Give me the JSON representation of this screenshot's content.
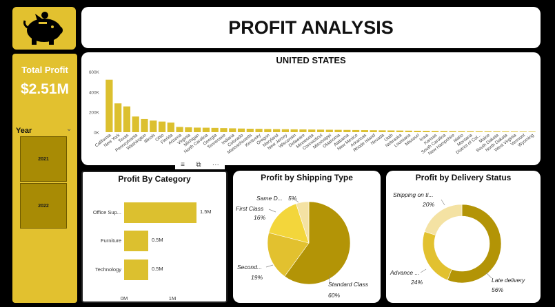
{
  "title": "PROFIT ANALYSIS",
  "logo": {
    "icon": "piggy-bank-icon"
  },
  "kpi": {
    "label": "Total Profit",
    "value": "$2.51M"
  },
  "year_slicer": {
    "label": "Year",
    "options": [
      "2021",
      "2022"
    ]
  },
  "toolbar": {
    "icons": [
      "filter-icon",
      "focus-mode-icon",
      "more-options-icon"
    ],
    "more_glyph": "···"
  },
  "colors": {
    "gold": "#e2c12f",
    "dark_gold": "#b39406",
    "bar": "#dcc02f"
  },
  "us_chart": {
    "title": "UNITED STATES",
    "chart_data": {
      "type": "bar",
      "ylim": [
        0,
        600000
      ],
      "yticks": [
        0,
        200000,
        400000,
        600000
      ],
      "ytick_labels": [
        "0K",
        "200K",
        "400K",
        "600K"
      ],
      "categories": [
        "California",
        "New York",
        "Texas",
        "Pennsylvania",
        "Washington",
        "Illinois",
        "Ohio",
        "Florida",
        "Arizona",
        "Virginia",
        "Michigan",
        "North Carolina",
        "Georgia",
        "Tennessee",
        "Indiana",
        "Colorado",
        "Massachusetts",
        "Kentucky",
        "Oregon",
        "Maryland",
        "New Jersey",
        "Wisconsin",
        "Delaware",
        "Minnesota",
        "Connecticut",
        "Mississippi",
        "Oklahoma",
        "Alabama",
        "New Mexico",
        "Arkansas",
        "Rhode Island",
        "Nevada",
        "Utah",
        "Nebraska",
        "Louisiana",
        "Missouri",
        "Iowa",
        "Kansas",
        "South Carolina",
        "New Hampshire",
        "Idaho",
        "Montana",
        "District of Col...",
        "Maine",
        "South Dakota",
        "North Dakota",
        "West Virginia",
        "Vermont",
        "Wyoming"
      ],
      "values": [
        520000,
        285000,
        255000,
        155000,
        130000,
        115000,
        105000,
        95000,
        52000,
        48000,
        45000,
        44000,
        42000,
        40000,
        38000,
        36000,
        34000,
        33000,
        31000,
        30000,
        29000,
        28000,
        27000,
        26000,
        25000,
        24000,
        23000,
        22000,
        21000,
        20000,
        19000,
        18000,
        17000,
        16000,
        15000,
        14000,
        13000,
        12000,
        11000,
        10000,
        9500,
        9000,
        8500,
        8000,
        7500,
        7000,
        6500,
        6000,
        5500
      ]
    }
  },
  "category_chart": {
    "title": "Profit By Category",
    "chart_data": {
      "type": "bar",
      "orientation": "horizontal",
      "categories": [
        "Office Sup...",
        "Furniture",
        "Technology"
      ],
      "values": [
        1500000,
        500000,
        500000
      ],
      "data_labels": [
        "1.5M",
        "0.5M",
        "0.5M"
      ],
      "xticks": [
        0,
        1000000
      ],
      "xtick_labels": [
        "0M",
        "1M"
      ],
      "xlim": [
        0,
        2000000
      ]
    }
  },
  "shipping_chart": {
    "title": "Profit by Shipping Type",
    "chart_data": {
      "type": "pie",
      "slices": [
        {
          "name": "Standard Class",
          "value": 60,
          "label": "60%",
          "color": "#b39406"
        },
        {
          "name": "Second...",
          "value": 19,
          "label": "19%",
          "color": "#e2c12f"
        },
        {
          "name": "First Class",
          "value": 16,
          "label": "16%",
          "color": "#f3d63b"
        },
        {
          "name": "Same D...",
          "value": 5,
          "label": "5%",
          "color": "#f4e2a3"
        }
      ]
    }
  },
  "delivery_chart": {
    "title": "Profit by Delivery Status",
    "chart_data": {
      "type": "pie",
      "donut": true,
      "slices": [
        {
          "name": "Late delivery",
          "value": 56,
          "label": "56%",
          "color": "#b39406"
        },
        {
          "name": "Advance ...",
          "value": 24,
          "label": "24%",
          "color": "#e2c12f"
        },
        {
          "name": "Shipping on ti...",
          "value": 20,
          "label": "20%",
          "color": "#f4e2a3"
        }
      ]
    }
  }
}
